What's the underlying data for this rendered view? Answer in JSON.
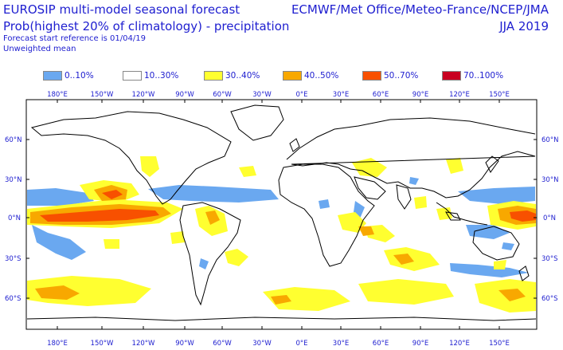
{
  "header": {
    "title_left_1": "EUROSIP multi-model seasonal forecast",
    "title_left_2": "Prob(highest 20% of climatology) - precipitation",
    "subtitle_1": "Forecast start reference is 01/04/19",
    "subtitle_2": "Unweighted mean",
    "title_right_1": "ECMWF/Met Office/Meteo-France/NCEP/JMA",
    "title_right_2": "JJA 2019"
  },
  "legend": {
    "items": [
      {
        "label": "0..10%",
        "color": "#6aa8f0"
      },
      {
        "label": "10..30%",
        "color": "#ffffff"
      },
      {
        "label": "30..40%",
        "color": "#ffff30"
      },
      {
        "label": "40..50%",
        "color": "#f8a800"
      },
      {
        "label": "50..70%",
        "color": "#f85000"
      },
      {
        "label": "70..100%",
        "color": "#c80020"
      }
    ]
  },
  "axes": {
    "lon_labels": [
      "180°E",
      "150°W",
      "120°W",
      "90°W",
      "60°W",
      "30°W",
      "0°E",
      "30°E",
      "60°E",
      "90°E",
      "120°E",
      "150°E"
    ],
    "lat_labels": [
      "60°N",
      "30°N",
      "0°N",
      "30°S",
      "60°S"
    ]
  },
  "map": {
    "colors": {
      "low": "#6aa8f0",
      "c30": "#ffff30",
      "c40": "#f8a800",
      "c50": "#f85000",
      "c70": "#c80020",
      "coast": "#000000",
      "frame": "#000000"
    }
  }
}
